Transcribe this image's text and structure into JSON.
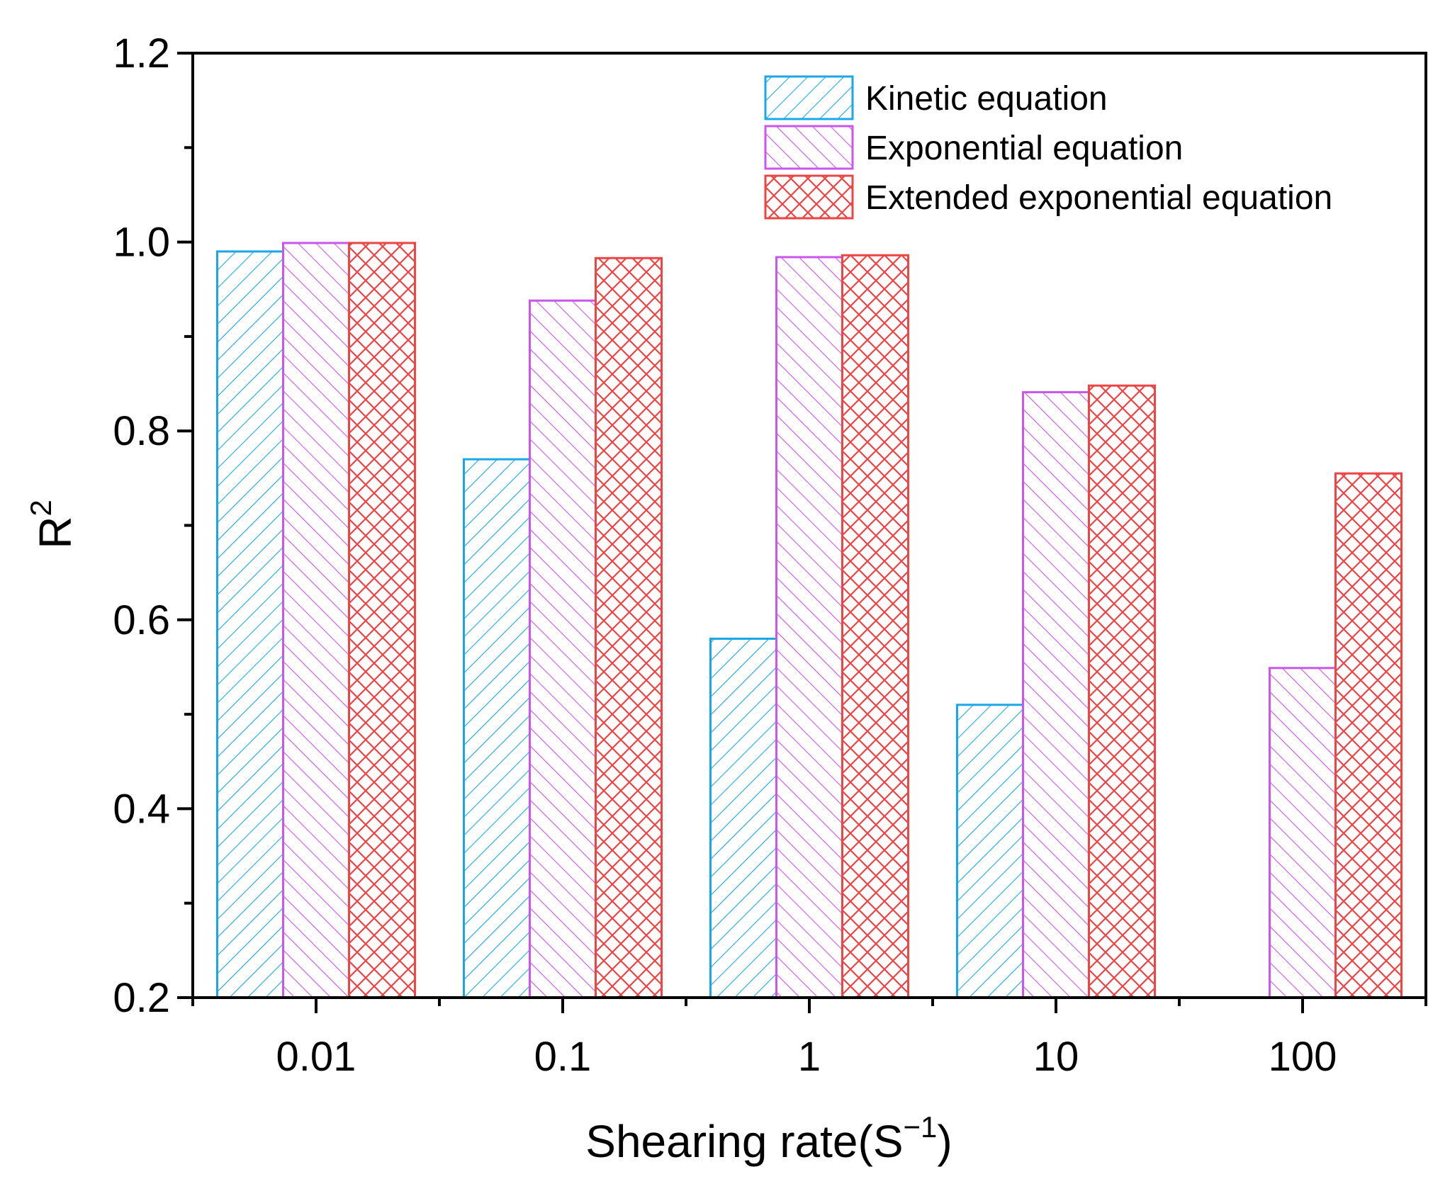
{
  "chart_data": {
    "type": "bar",
    "title": "",
    "xlabel": "Shearing rate(S",
    "xlabel_sup": "−1",
    "xlabel_close": ")",
    "ylabel": "R",
    "ylabel_sup": "2",
    "categories": [
      "0.01",
      "0.1",
      "1",
      "10",
      "100"
    ],
    "ylim": [
      0.2,
      1.2
    ],
    "yticks": [
      "0.2",
      "0.4",
      "0.6",
      "0.8",
      "1.0",
      "1.2"
    ],
    "grid": false,
    "legend_position": "top-right",
    "series": [
      {
        "name": "Kinetic equation",
        "color": "#1aa7e8",
        "pattern": "diagonal-up",
        "values": [
          0.99,
          0.77,
          0.58,
          0.51,
          null
        ]
      },
      {
        "name": "Exponential equation",
        "color": "#cc55ee",
        "pattern": "diagonal-down",
        "values": [
          0.999,
          0.938,
          0.984,
          0.841,
          0.549
        ]
      },
      {
        "name": "Extended exponential equation",
        "color": "#ee4444",
        "pattern": "cross",
        "values": [
          0.999,
          0.983,
          0.986,
          0.848,
          0.755
        ]
      }
    ]
  }
}
